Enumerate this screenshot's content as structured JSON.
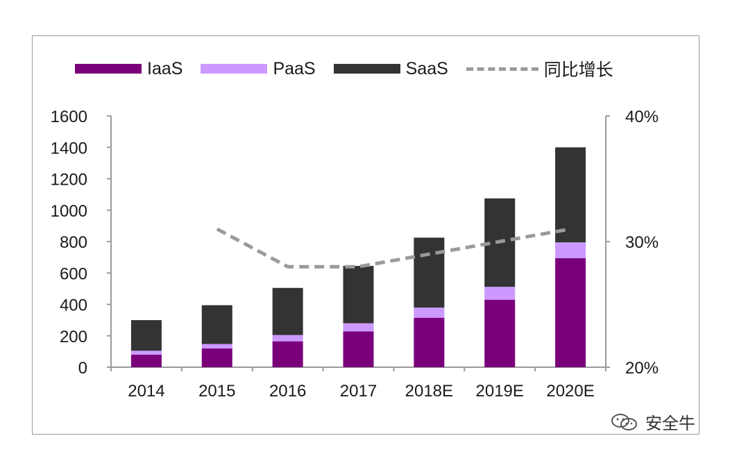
{
  "chart_data": {
    "type": "bar",
    "stacked": true,
    "categories": [
      "2014",
      "2015",
      "2016",
      "2017",
      "2018E",
      "2019E",
      "2020E"
    ],
    "series": [
      {
        "name": "IaaS",
        "values": [
          80,
          120,
          165,
          228,
          315,
          430,
          695
        ],
        "color": "#7a007a"
      },
      {
        "name": "PaaS",
        "values": [
          25,
          28,
          40,
          52,
          65,
          82,
          100
        ],
        "color": "#cc99ff"
      },
      {
        "name": "SaaS",
        "values": [
          195,
          247,
          300,
          365,
          445,
          563,
          605
        ],
        "color": "#333333"
      }
    ],
    "line_series": {
      "name": "同比增长",
      "axis": "right",
      "values": [
        null,
        0.31,
        0.28,
        0.28,
        0.29,
        0.3,
        0.31
      ],
      "color": "#9a9a9a",
      "style": "dashed"
    },
    "ylim": [
      0,
      1600
    ],
    "y_ticks": [
      0,
      200,
      400,
      600,
      800,
      1000,
      1200,
      1400,
      1600
    ],
    "y2lim": [
      0.2,
      0.4
    ],
    "y2_ticks": [
      "20%",
      "30%",
      "40%"
    ],
    "legend": "top",
    "grid": false,
    "xlabel": "",
    "ylabel": ""
  },
  "legend": {
    "iaas": "IaaS",
    "paas": "PaaS",
    "saas": "SaaS",
    "growth": "同比增长"
  },
  "watermark": {
    "text": "安全牛",
    "icon": "wechat-icon"
  }
}
